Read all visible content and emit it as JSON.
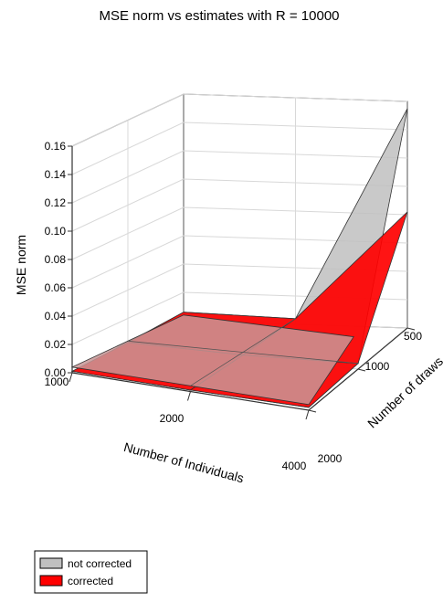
{
  "chart_data": {
    "type": "surface3d",
    "title": "MSE norm vs estimates with R = 10000",
    "xlabel": "Number of Individuals",
    "ylabel": "Number of draws",
    "zlabel": "MSE norm",
    "x": [
      1000,
      2000,
      4000
    ],
    "y": [
      500,
      1000,
      2000
    ],
    "x_tick_labels": [
      "1000",
      "2000",
      "4000"
    ],
    "y_tick_labels": [
      "500",
      "1000",
      "2000"
    ],
    "z_ticks": [
      0,
      0.02,
      0.04,
      0.06,
      0.08,
      0.1,
      0.12,
      0.14,
      0.16
    ],
    "z_tick_labels": [
      "0.00",
      "0.02",
      "0.04",
      "0.06",
      "0.08",
      "0.10",
      "0.12",
      "0.14",
      "0.16"
    ],
    "zlim": [
      0,
      0.16
    ],
    "grid": true,
    "legend_position": "bottom-left",
    "series": [
      {
        "name": "not corrected",
        "color": "#c0c0c0",
        "values": [
          [
            0.006,
            0.004,
            0.155
          ],
          [
            0.003,
            0.002,
            0.004
          ],
          [
            0.001,
            0.001,
            0.002
          ]
        ]
      },
      {
        "name": "corrected",
        "color": "#ff0000",
        "values": [
          [
            0.006,
            0.004,
            0.082
          ],
          [
            0.003,
            0.002,
            0.004
          ],
          [
            0.001,
            0.001,
            0.002
          ]
        ]
      }
    ]
  }
}
